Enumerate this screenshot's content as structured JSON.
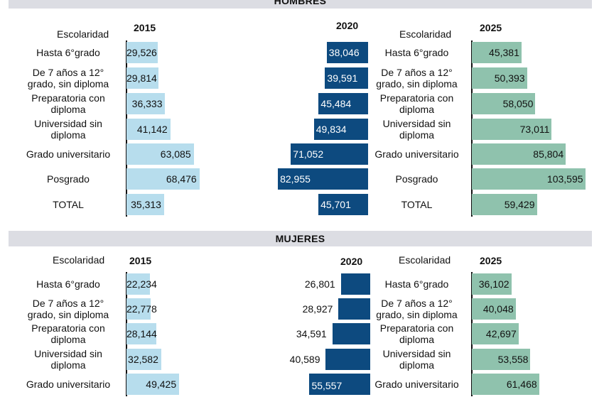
{
  "colors": {
    "c2015": "#b7dded",
    "c2020": "#0d4a7f",
    "c2025": "#8fc2ad",
    "band": "#dcdde3"
  },
  "chart_data": [
    {
      "type": "bar",
      "group": "HOMBRES",
      "category_header": "Escolaridad",
      "categories": [
        "Hasta 6°grado",
        "De 7 años a 12°\ngrado, sin diploma",
        "Preparatoria con\ndiploma",
        "Universidad sin\ndiploma",
        "Grado universitario",
        "Posgrado",
        "TOTAL"
      ],
      "series": [
        {
          "name": "2015",
          "values": [
            29526,
            29814,
            36333,
            41142,
            63085,
            68476,
            35313
          ],
          "labels": [
            "29,526",
            "29,814",
            "36,333",
            "41,142",
            "63,085",
            "68,476",
            "35,313"
          ]
        },
        {
          "name": "2020",
          "values": [
            38046,
            39591,
            45484,
            49834,
            71052,
            82955,
            45701
          ],
          "labels": [
            "38,046",
            "39,591",
            "45,484",
            "49,834",
            "71,052",
            "82,955",
            "45,701"
          ]
        },
        {
          "name": "2025",
          "values": [
            45381,
            50393,
            58050,
            73011,
            85804,
            103595,
            59429
          ],
          "labels": [
            "45,381",
            "50,393",
            "58,050",
            "73,011",
            "85,804",
            "103,595",
            "59,429"
          ]
        }
      ]
    },
    {
      "type": "bar",
      "group": "MUJERES",
      "category_header": "Escolaridad",
      "categories": [
        "Hasta 6°grado",
        "De 7 años a 12°\ngrado, sin diploma",
        "Preparatoria con\ndiploma",
        "Universidad sin\ndiploma",
        "Grado universitario"
      ],
      "series": [
        {
          "name": "2015",
          "values": [
            22234,
            22778,
            28144,
            32582,
            49425
          ],
          "labels": [
            "22,234",
            "22,778",
            "28,144",
            "32,582",
            "49,425"
          ]
        },
        {
          "name": "2020",
          "values": [
            26801,
            28927,
            34591,
            40589,
            55557
          ],
          "labels": [
            "26,801",
            "28,927",
            "34,591",
            "40,589",
            "55,557"
          ]
        },
        {
          "name": "2025",
          "values": [
            36102,
            40048,
            42697,
            53558,
            61468
          ],
          "labels": [
            "36,102",
            "40,048",
            "42,697",
            "53,558",
            "61,468"
          ]
        }
      ]
    }
  ]
}
